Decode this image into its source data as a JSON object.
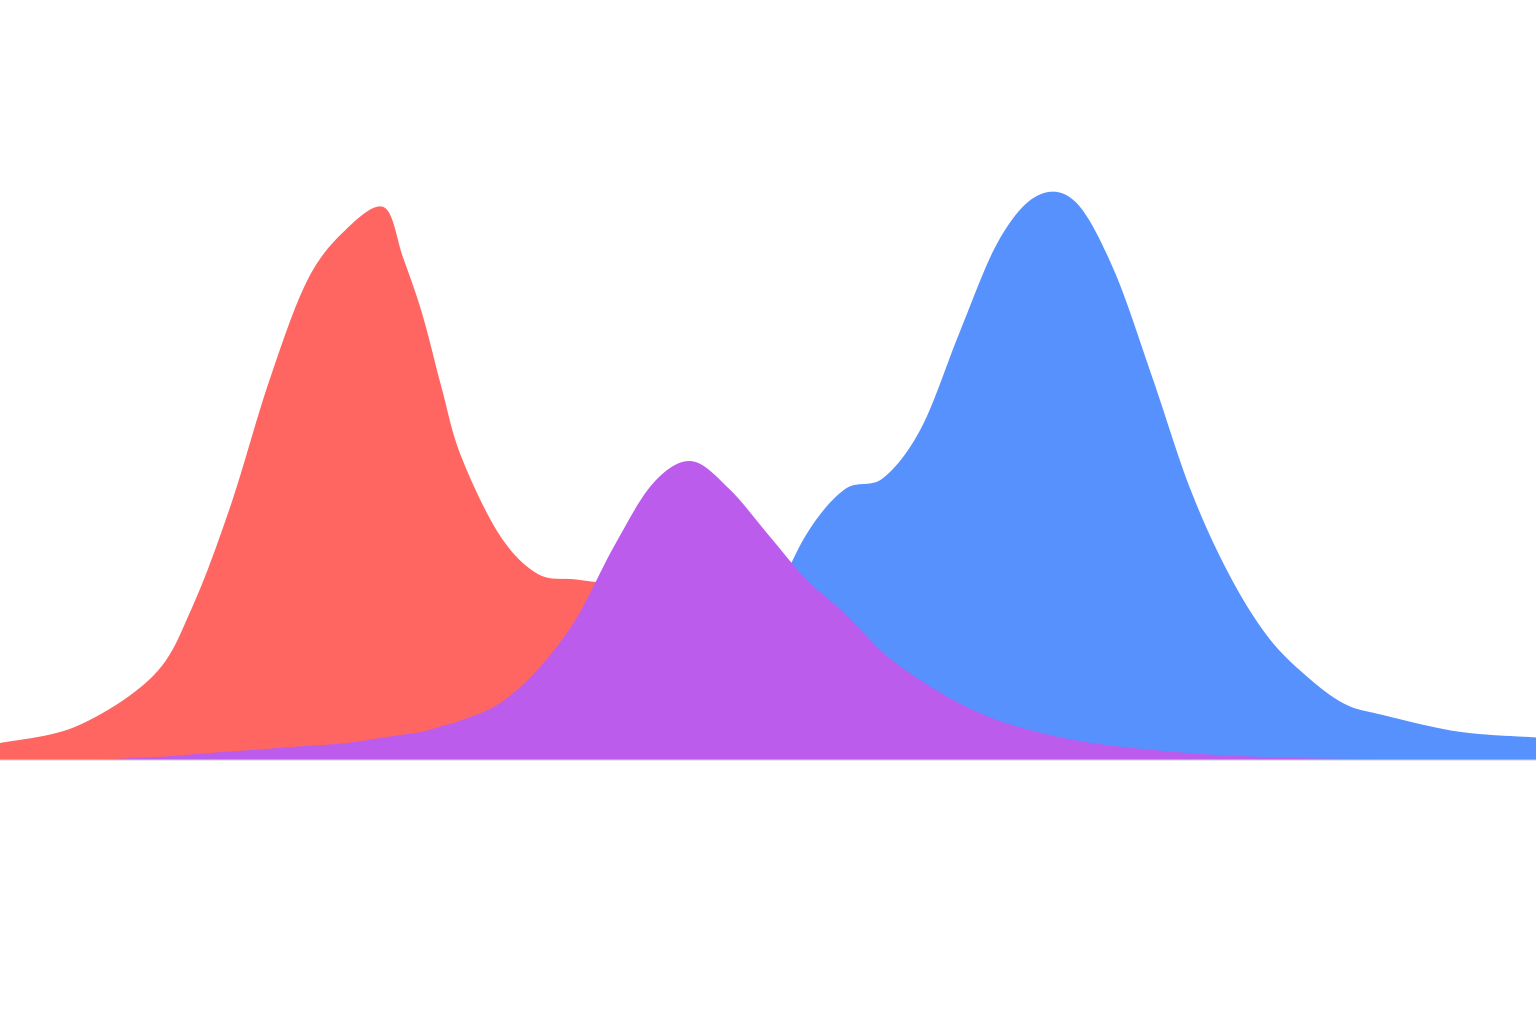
{
  "chart_data": {
    "type": "area",
    "title": "",
    "xlabel": "",
    "ylabel": "",
    "xlim": [
      0,
      1
    ],
    "ylim": [
      0,
      1
    ],
    "grid": false,
    "legend": "none",
    "x": [
      0,
      0.05,
      0.1,
      0.125,
      0.15,
      0.175,
      0.2,
      0.225,
      0.25,
      0.2625,
      0.275,
      0.2875,
      0.3,
      0.325,
      0.35,
      0.375,
      0.4,
      0.425,
      0.45,
      0.475,
      0.5,
      0.525,
      0.55,
      0.575,
      0.6,
      0.625,
      0.65,
      0.675,
      0.7,
      0.725,
      0.75,
      0.775,
      0.8,
      0.825,
      0.85,
      0.875,
      0.9,
      0.95,
      1
    ],
    "series": [
      {
        "id": "red",
        "color": "#FF6561",
        "values": [
          0.03,
          0.06,
          0.15,
          0.27,
          0.45,
          0.67,
          0.85,
          0.94,
          0.98,
          0.89,
          0.79,
          0.66,
          0.54,
          0.4,
          0.33,
          0.32,
          0.31,
          0.29,
          0.24,
          0.18,
          0.13,
          0.09,
          0.06,
          0.04,
          0.025,
          0.015,
          0.01,
          0.006,
          0.004,
          0.002,
          0.001,
          0.0005,
          0.0003,
          0.0002,
          0.0001,
          0,
          0,
          0,
          0
        ]
      },
      {
        "id": "blue",
        "color": "#5691FD",
        "values": [
          0,
          0,
          0,
          0,
          0,
          0,
          0,
          0,
          0,
          0,
          0,
          0,
          0,
          0,
          0,
          0,
          0,
          0,
          0.04,
          0.13,
          0.26,
          0.4,
          0.48,
          0.5,
          0.59,
          0.76,
          0.92,
          1.0,
          0.99,
          0.87,
          0.68,
          0.48,
          0.33,
          0.22,
          0.15,
          0.1,
          0.08,
          0.05,
          0.04
        ]
      },
      {
        "id": "purple",
        "color": "#BC5CEC",
        "values": [
          0,
          0,
          0.005,
          0.01,
          0.015,
          0.02,
          0.025,
          0.03,
          0.04,
          0.045,
          0.05,
          0.06,
          0.07,
          0.1,
          0.16,
          0.25,
          0.38,
          0.49,
          0.53,
          0.48,
          0.4,
          0.32,
          0.26,
          0.19,
          0.14,
          0.1,
          0.07,
          0.05,
          0.035,
          0.025,
          0.018,
          0.012,
          0.008,
          0.005,
          0.003,
          0.002,
          0.001,
          0,
          0
        ]
      }
    ]
  }
}
